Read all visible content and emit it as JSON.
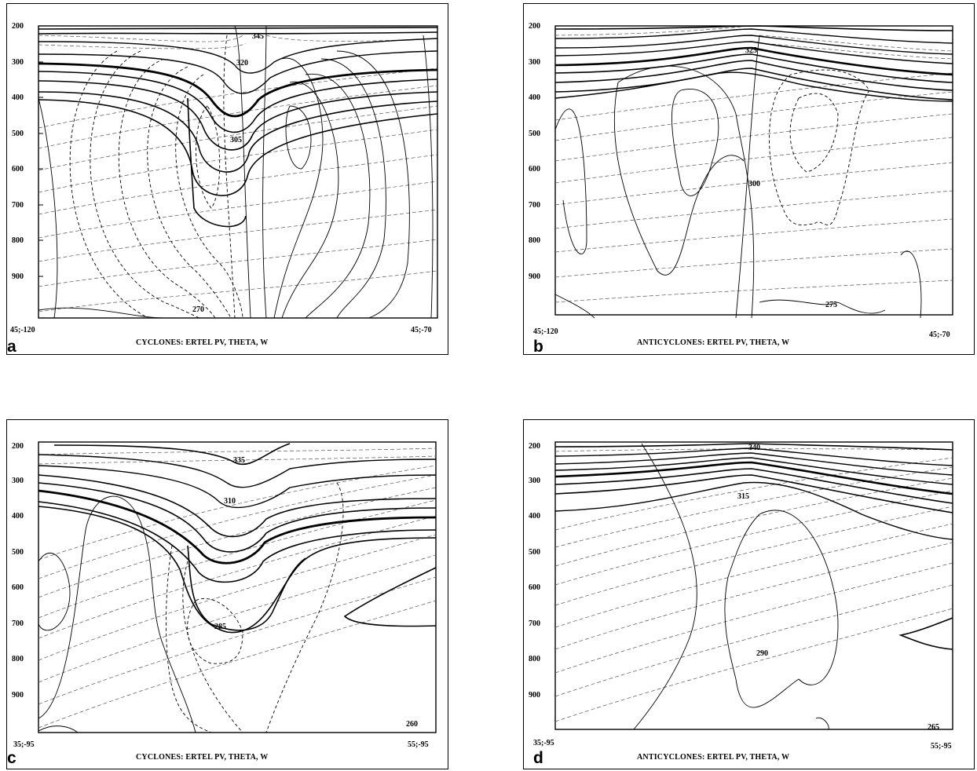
{
  "figure": {
    "y_ticks": [
      "200",
      "300",
      "400",
      "500",
      "600",
      "700",
      "800",
      "900"
    ],
    "panels": [
      {
        "letter": "a",
        "caption": "CYCLONES: ERTEL PV, THETA, W",
        "left_label": "45;-120",
        "right_label": "45;-70",
        "contour_labels": [
          "345",
          "320",
          "305",
          "270"
        ]
      },
      {
        "letter": "b",
        "caption": "ANTICYCLONES: ERTEL PV, THETA, W",
        "left_label": "45;-120",
        "right_label": "45;-70",
        "contour_labels": [
          "325",
          "300",
          "275"
        ]
      },
      {
        "letter": "c",
        "caption": "CYCLONES: ERTEL PV, THETA, W",
        "left_label": "35;-95",
        "right_label": "55;-95",
        "contour_labels": [
          "335",
          "310",
          "285",
          "260"
        ]
      },
      {
        "letter": "d",
        "caption": "ANTICYCLONES: ERTEL PV, THETA, W",
        "left_label": "35;-95",
        "right_label": "55;-95",
        "contour_labels": [
          "340",
          "315",
          "290",
          "265"
        ]
      }
    ]
  }
}
